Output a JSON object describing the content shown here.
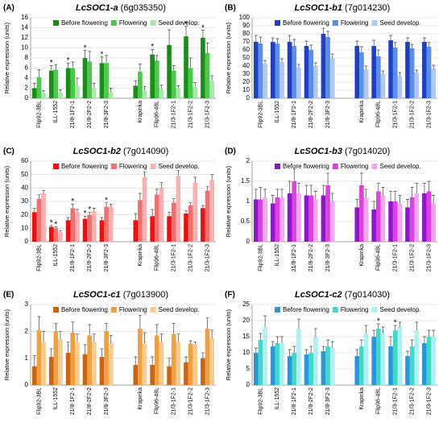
{
  "chart_data": [
    {
      "type": "bar",
      "panel": "(A)",
      "title": "LcSOC1-a",
      "subtitle": "(6g035350)",
      "ylabel": "Relative expression (units)",
      "categories": [
        "Flip92-3BL",
        "ILL-1552",
        "21/8-1F2-1",
        "21/8-2F2-2",
        "21/8-3F2-3",
        null,
        "Krapinka",
        "Flip96-48L",
        "21/3-1F2-1",
        "21/3-1F2-2",
        "21/3-1F2-3"
      ],
      "ylim": [
        0,
        16
      ],
      "yticks": [
        0,
        2,
        4,
        6,
        8,
        10,
        12,
        14,
        16
      ],
      "grid": true,
      "series": [
        {
          "name": "Before flowering",
          "color": "#1a8c1a",
          "values": [
            2,
            5.5,
            6,
            8,
            7,
            null,
            2.5,
            8.7,
            10.6,
            12.3,
            12
          ],
          "errors": [
            1,
            1,
            1,
            1.5,
            1.2,
            null,
            1,
            1,
            3,
            2,
            1.5
          ],
          "stars": [
            null,
            "*",
            "*",
            "*",
            "*",
            null,
            null,
            "*",
            null,
            "*",
            "*"
          ]
        },
        {
          "name": "Flowering",
          "color": "#4cc84c",
          "values": [
            4.2,
            5.7,
            6,
            7.3,
            7,
            null,
            5.3,
            7.5,
            5.5,
            6,
            9
          ],
          "errors": [
            1.5,
            1,
            1.2,
            2,
            1.5,
            null,
            1.5,
            1,
            1,
            2,
            2
          ]
        },
        {
          "name": "Seed develop.",
          "color": "#a8e8a8",
          "values": [
            1,
            1.2,
            2.5,
            2,
            1.2,
            null,
            1.5,
            1.8,
            2,
            2.3,
            3.5
          ],
          "errors": [
            0.5,
            0.5,
            1.5,
            1,
            0.8,
            null,
            0.8,
            0.8,
            0.5,
            0.8,
            1
          ]
        }
      ]
    },
    {
      "type": "bar",
      "panel": "(B)",
      "title": "LcSOC1-b1",
      "subtitle": "(7g014230)",
      "ylabel": "Relative expression (units)",
      "categories": [
        "Flip92-3BL",
        "ILL-1552",
        "21/8-1F2-1",
        "21/8-2F2-2",
        "21/8-3F2-3",
        null,
        "Krapinka",
        "Flip96-48L",
        "21/3-1F2-1",
        "21/3-1F2-2",
        "21/3-1F2-3"
      ],
      "ylim": [
        0,
        100
      ],
      "yticks": [
        0,
        10,
        20,
        30,
        40,
        50,
        60,
        70,
        80,
        90,
        100
      ],
      "grid": true,
      "series": [
        {
          "name": "Before flowering",
          "color": "#1f3fbf",
          "values": [
            70,
            70,
            70,
            65,
            80,
            null,
            65,
            65,
            72,
            70,
            70
          ],
          "errors": [
            8,
            5,
            8,
            6,
            7,
            null,
            6,
            7,
            6,
            5,
            5
          ]
        },
        {
          "name": "Flowering",
          "color": "#5b8ee6",
          "values": [
            68,
            68,
            65,
            60,
            76,
            null,
            57,
            52,
            63,
            62,
            64
          ],
          "errors": [
            8,
            6,
            8,
            6,
            7,
            null,
            7,
            8,
            6,
            5,
            5
          ]
        },
        {
          "name": "Seed develop.",
          "color": "#b0c8f0",
          "values": [
            43,
            45,
            38,
            40,
            50,
            null,
            36,
            30,
            28,
            32,
            37
          ],
          "errors": [
            4,
            4,
            4,
            4,
            5,
            null,
            4,
            4,
            4,
            3,
            4
          ]
        }
      ]
    },
    {
      "type": "bar",
      "panel": "(C)",
      "title": "LcSOC1-b2",
      "subtitle": "(7g014090)",
      "ylabel": "Relative expression (units)",
      "categories": [
        "Flip92-3BL",
        "ILL-1552",
        "21/8-1F2-1",
        "21/8-2F2-2",
        "21/8-3F2-3",
        null,
        "Krapinka",
        "Flip96-48L",
        "21/3-1F2-1",
        "21/3-1F2-2",
        "21/3-1F2-3"
      ],
      "ylim": [
        0,
        60
      ],
      "yticks": [
        0,
        10,
        20,
        30,
        40,
        50,
        60
      ],
      "grid": true,
      "series": [
        {
          "name": "Before flowering",
          "color": "#e81010",
          "values": [
            22,
            11,
            16,
            17,
            16,
            null,
            16,
            19,
            19,
            21,
            25
          ],
          "errors": [
            3,
            1,
            2,
            2,
            2,
            null,
            5,
            5,
            3,
            2,
            2
          ],
          "stars": [
            null,
            "*",
            null,
            "*",
            null,
            null,
            null,
            null,
            null,
            null,
            null
          ]
        },
        {
          "name": "Flowering",
          "color": "#f07070",
          "values": [
            32,
            10,
            25,
            20,
            26,
            null,
            31,
            35,
            29,
            27,
            38
          ],
          "errors": [
            3,
            1,
            3,
            2,
            3,
            null,
            5,
            4,
            3,
            2,
            3
          ],
          "stars": [
            null,
            "*",
            "*",
            "*",
            "*",
            null,
            null,
            null,
            null,
            null,
            null
          ]
        },
        {
          "name": "Seed develop.",
          "color": "#f8b0b0",
          "values": [
            36,
            7,
            22,
            23,
            26,
            null,
            48,
            40,
            49,
            44,
            46
          ],
          "errors": [
            2,
            1,
            2,
            2,
            2,
            null,
            4,
            4,
            4,
            4,
            4
          ]
        }
      ]
    },
    {
      "type": "bar",
      "panel": "(D)",
      "title": "LcSOC1-b3",
      "subtitle": "(7g014020)",
      "ylabel": "Relative expression (units)",
      "categories": [
        "Flip92-3BL",
        "ILL-1552",
        "21/8-1F2-1",
        "21/8-2F2-2",
        "21/8-3F2-3",
        null,
        "Krapinka",
        "Flip96-48L",
        "21/3-1F2-1",
        "21/3-1F2-2",
        "21/3-1F2-3"
      ],
      "ylim": [
        0,
        2
      ],
      "yticks": [
        0,
        0.5,
        1,
        1.5,
        2
      ],
      "grid": true,
      "series": [
        {
          "name": "Before flowering",
          "color": "#8a18c8",
          "values": [
            1.05,
            0.95,
            1.2,
            1.15,
            1.15,
            null,
            0.85,
            0.8,
            1.0,
            0.85,
            1.2
          ],
          "errors": [
            0.25,
            0.2,
            0.3,
            0.25,
            0.25,
            null,
            0.2,
            0.2,
            0.25,
            0.2,
            0.25
          ]
        },
        {
          "name": "Flowering",
          "color": "#e040e0",
          "values": [
            1.05,
            1.1,
            1.5,
            1.15,
            1.4,
            null,
            1.4,
            1.25,
            1.0,
            1.1,
            1.25
          ],
          "errors": [
            0.3,
            0.2,
            0.3,
            0.25,
            0.3,
            null,
            0.3,
            0.2,
            0.25,
            0.25,
            0.25
          ]
        },
        {
          "name": "Seed develop.",
          "color": "#f0a8f0",
          "values": [
            1.1,
            1.1,
            1.2,
            1.05,
            1.0,
            null,
            1.1,
            1.15,
            0.95,
            1.2,
            0.95
          ],
          "errors": [
            0.2,
            0.2,
            0.25,
            0.2,
            0.2,
            null,
            0.2,
            0.2,
            0.2,
            0.25,
            0.2
          ]
        }
      ]
    },
    {
      "type": "bar",
      "panel": "(E)",
      "title": "LcSOC1-c1",
      "subtitle": "(7g013900)",
      "ylabel": "Relative expression (units)",
      "categories": [
        "Flip92-3BL",
        "ILL-1552",
        "21/8-1F2-1",
        "21/8-2F2-2",
        "21/8-3F2-3",
        null,
        "Krapinka",
        "Flip96-48L",
        "21/3-1F2-1",
        "21/3-1F2-2",
        "21/3-1F2-3"
      ],
      "ylim": [
        0,
        3
      ],
      "yticks": [
        0,
        1,
        2,
        3
      ],
      "grid": true,
      "series": [
        {
          "name": "Before flowering",
          "color": "#c86414",
          "values": [
            0.7,
            1.05,
            1.2,
            1.15,
            1.05,
            null,
            0.75,
            0.75,
            0.7,
            0.85,
            1.0
          ],
          "errors": [
            0.4,
            0.3,
            0.4,
            0.35,
            0.3,
            null,
            0.3,
            0.3,
            0.3,
            0.2,
            0.2
          ]
        },
        {
          "name": "Flowering",
          "color": "#f0a040",
          "values": [
            2.05,
            2.0,
            1.95,
            1.85,
            2.0,
            null,
            2.1,
            1.85,
            1.9,
            1.55,
            2.1
          ],
          "errors": [
            0.5,
            0.3,
            0.4,
            0.4,
            0.3,
            null,
            0.5,
            0.4,
            0.4,
            0.1,
            0.4
          ]
        },
        {
          "name": "Seed develop.",
          "color": "#f8cc90",
          "values": [
            1.6,
            1.7,
            1.6,
            1.6,
            1.55,
            null,
            1.55,
            1.6,
            1.6,
            1.5,
            1.75
          ],
          "errors": [
            0.4,
            0.3,
            0.3,
            0.3,
            0.3,
            null,
            0.4,
            0.3,
            0.3,
            0.1,
            0.3
          ]
        }
      ]
    },
    {
      "type": "bar",
      "panel": "(F)",
      "title": "LcSOC1-c2",
      "subtitle": "(7g014030)",
      "ylabel": "Relative expression (units)",
      "categories": [
        "Flip92-3BL",
        "ILL-1552",
        "21/8-1F2-1",
        "21/8-2F2-2",
        "21/8-3F2-3",
        null,
        "Krapinka",
        "Flip96-48L",
        "21/3-1F2-1",
        "21/3-1F2-2",
        "21/3-1F2-3"
      ],
      "ylim": [
        0,
        25
      ],
      "yticks": [
        0,
        5,
        10,
        15,
        20,
        25
      ],
      "grid": true,
      "series": [
        {
          "name": "Before flowering",
          "color": "#2896d8",
          "values": [
            10,
            12,
            9,
            9.5,
            10.5,
            null,
            9,
            15,
            12,
            9,
            13
          ],
          "errors": [
            1.5,
            1.5,
            2,
            1.5,
            1.5,
            null,
            2,
            2,
            3,
            1.5,
            2
          ]
        },
        {
          "name": "Flowering",
          "color": "#40d8c8",
          "values": [
            14,
            13,
            10,
            10,
            12,
            null,
            12,
            17.5,
            17,
            12,
            15
          ],
          "errors": [
            2,
            2,
            2,
            2,
            2,
            null,
            2,
            1.5,
            1.5,
            2,
            2
          ],
          "stars": [
            null,
            null,
            null,
            null,
            null,
            null,
            null,
            "*",
            "*",
            null,
            null
          ]
        },
        {
          "name": "Seed develop.",
          "color": "#b0f0f0",
          "values": [
            18,
            13,
            17.5,
            15,
            11.5,
            null,
            16,
            16,
            18,
            17,
            15
          ],
          "errors": [
            3.5,
            2,
            3,
            2.5,
            2,
            null,
            2.5,
            2,
            1.5,
            2.5,
            2
          ]
        }
      ]
    }
  ]
}
